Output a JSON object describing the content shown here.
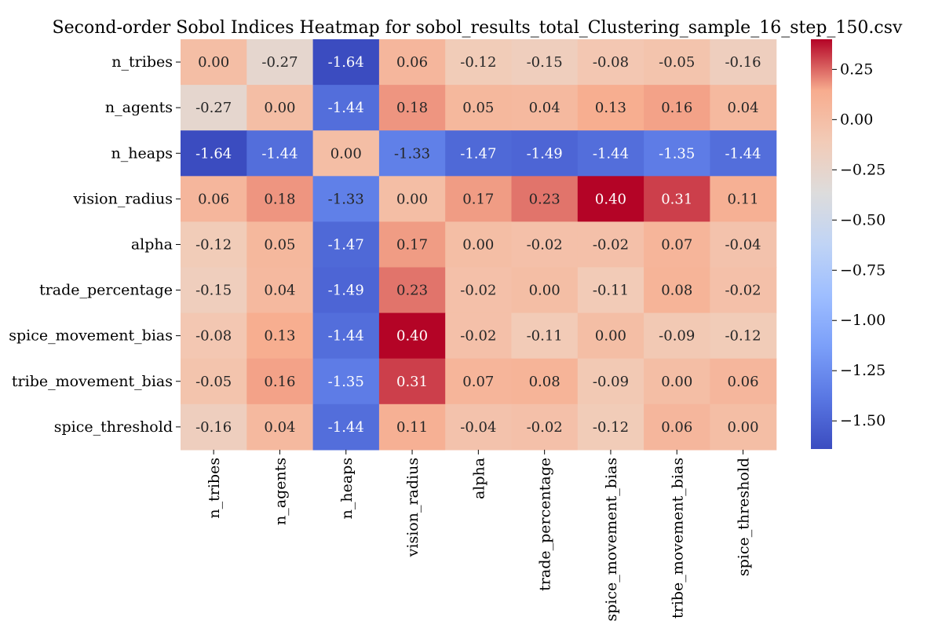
{
  "chart_data": {
    "type": "heatmap",
    "title": "Second-order Sobol Indices Heatmap for sobol_results_total_Clustering_sample_16_step_150.csv",
    "row_labels": [
      "n_tribes",
      "n_agents",
      "n_heaps",
      "vision_radius",
      "alpha",
      "trade_percentage",
      "spice_movement_bias",
      "tribe_movement_bias",
      "spice_threshold"
    ],
    "col_labels": [
      "n_tribes",
      "n_agents",
      "n_heaps",
      "vision_radius",
      "alpha",
      "trade_percentage",
      "spice_movement_bias",
      "tribe_movement_bias",
      "spice_threshold"
    ],
    "values": [
      [
        0.0,
        -0.27,
        -1.64,
        0.06,
        -0.12,
        -0.15,
        -0.08,
        -0.05,
        -0.16
      ],
      [
        -0.27,
        0.0,
        -1.44,
        0.18,
        0.05,
        0.04,
        0.13,
        0.16,
        0.04
      ],
      [
        -1.64,
        -1.44,
        0.0,
        -1.33,
        -1.47,
        -1.49,
        -1.44,
        -1.35,
        -1.44
      ],
      [
        0.06,
        0.18,
        -1.33,
        0.0,
        0.17,
        0.23,
        0.4,
        0.31,
        0.11
      ],
      [
        -0.12,
        0.05,
        -1.47,
        0.17,
        0.0,
        -0.02,
        -0.02,
        0.07,
        -0.04
      ],
      [
        -0.15,
        0.04,
        -1.49,
        0.23,
        -0.02,
        0.0,
        -0.11,
        0.08,
        -0.02
      ],
      [
        -0.08,
        0.13,
        -1.44,
        0.4,
        -0.02,
        -0.11,
        0.0,
        -0.09,
        -0.12
      ],
      [
        -0.05,
        0.16,
        -1.35,
        0.31,
        0.07,
        0.08,
        -0.09,
        0.0,
        0.06
      ],
      [
        -0.16,
        0.04,
        -1.44,
        0.11,
        -0.04,
        -0.02,
        -0.12,
        0.06,
        0.0
      ]
    ],
    "colormap": "coolwarm",
    "vmin": -1.64,
    "vmax": 0.4,
    "colorbar_ticks": [
      0.25,
      0.0,
      -0.25,
      -0.5,
      -0.75,
      -1.0,
      -1.25,
      -1.5
    ],
    "colorbar_tick_labels": [
      "0.25",
      "0.00",
      "−0.25",
      "−0.50",
      "−0.75",
      "−1.00",
      "−1.25",
      "−1.50"
    ]
  }
}
